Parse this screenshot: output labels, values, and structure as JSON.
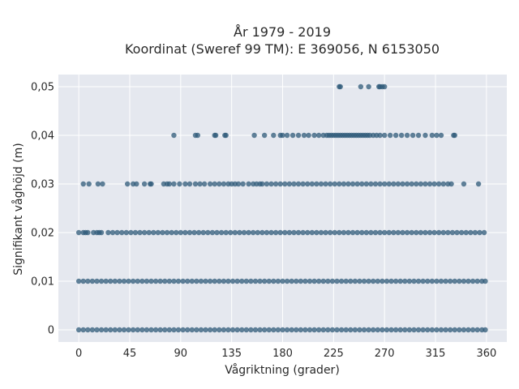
{
  "chart_data": {
    "type": "scatter",
    "title": "År 1979 - 2019",
    "subtitle": "Koordinat (Sweref 99 TM): E 369056, N 6153050",
    "xlabel": "Vågriktning (grader)",
    "ylabel": "Signifikant våghöjd (m)",
    "xlim": [
      -18,
      378
    ],
    "ylim": [
      -0.0025,
      0.0525
    ],
    "x_ticks": [
      0,
      45,
      90,
      135,
      180,
      225,
      270,
      315,
      360
    ],
    "x_tick_labels": [
      "0",
      "45",
      "90",
      "135",
      "180",
      "225",
      "270",
      "315",
      "360"
    ],
    "y_ticks": [
      0,
      0.01,
      0.02,
      0.03,
      0.04,
      0.05
    ],
    "y_tick_labels": [
      "0",
      "0,01",
      "0,02",
      "0,03",
      "0,04",
      "0,05"
    ],
    "grid": true,
    "legend": "none",
    "marker_color": "#2e5a78",
    "plot_background": "#e5e8ef",
    "series": [
      {
        "level_points": [
          {
            "y": 0.05,
            "x": [
              230,
              231,
              249,
              256,
              265,
              266,
              268,
              270
            ]
          },
          {
            "y": 0.04,
            "x": [
              84,
              103,
              105,
              120,
              121,
              129,
              130,
              155,
              164,
              172,
              178,
              180,
              184,
              189,
              194,
              199,
              203,
              208,
              212,
              216,
              219,
              221,
              223,
              225,
              227,
              229,
              231,
              233,
              235,
              237,
              239,
              241,
              243,
              245,
              247,
              249,
              251,
              253,
              255,
              257,
              260,
              263,
              266,
              270,
              275,
              280,
              285,
              290,
              295,
              300,
              306,
              312,
              316,
              320,
              331,
              332
            ]
          },
          {
            "y": 0.03,
            "x": [
              4,
              9,
              17,
              21,
              43,
              48,
              51,
              58,
              63,
              64,
              75,
              78,
              80,
              84,
              89,
              94,
              98,
              103,
              107,
              111,
              116,
              120,
              124,
              128,
              132,
              135,
              138,
              141,
              145,
              150,
              154,
              157,
              160,
              162,
              166,
              170,
              174,
              178,
              182,
              186,
              190,
              194,
              198,
              202,
              206,
              210,
              214,
              218,
              222,
              226,
              230,
              234,
              238,
              242,
              246,
              250,
              254,
              258,
              262,
              266,
              270,
              274,
              278,
              282,
              286,
              290,
              294,
              298,
              302,
              306,
              310,
              314,
              318,
              322,
              326,
              329,
              340,
              353
            ]
          },
          {
            "y": 0.02,
            "x": [
              0,
              4,
              6,
              8,
              13,
              16,
              18,
              20,
              26,
              30,
              34,
              38,
              42,
              46,
              50,
              54,
              58,
              62,
              66,
              70,
              74,
              78,
              82,
              86,
              90,
              94,
              98,
              102,
              106,
              110,
              114,
              118,
              122,
              126,
              130,
              134,
              138,
              142,
              146,
              150,
              154,
              158,
              162,
              166,
              170,
              174,
              178,
              182,
              186,
              190,
              194,
              198,
              202,
              206,
              210,
              214,
              218,
              222,
              226,
              230,
              234,
              238,
              242,
              246,
              250,
              254,
              258,
              262,
              266,
              270,
              274,
              278,
              282,
              286,
              290,
              294,
              298,
              302,
              306,
              310,
              314,
              318,
              322,
              326,
              330,
              334,
              338,
              342,
              346,
              350,
              354,
              358
            ]
          },
          {
            "y": 0.01,
            "x": [
              0,
              4,
              8,
              12,
              16,
              20,
              24,
              28,
              32,
              36,
              40,
              44,
              48,
              52,
              56,
              60,
              64,
              68,
              72,
              76,
              80,
              84,
              88,
              92,
              96,
              100,
              104,
              108,
              112,
              116,
              120,
              124,
              128,
              132,
              136,
              140,
              144,
              148,
              152,
              156,
              160,
              164,
              168,
              172,
              176,
              180,
              184,
              188,
              192,
              196,
              200,
              204,
              208,
              212,
              216,
              220,
              224,
              228,
              232,
              236,
              240,
              244,
              248,
              252,
              256,
              260,
              264,
              268,
              272,
              276,
              280,
              284,
              288,
              292,
              296,
              300,
              304,
              308,
              312,
              316,
              320,
              324,
              328,
              332,
              336,
              340,
              344,
              348,
              352,
              356,
              359
            ]
          },
          {
            "y": 0,
            "x": [
              0,
              4,
              8,
              12,
              16,
              20,
              24,
              28,
              32,
              36,
              40,
              44,
              48,
              52,
              56,
              60,
              64,
              68,
              72,
              76,
              80,
              84,
              88,
              92,
              96,
              100,
              104,
              108,
              112,
              116,
              120,
              124,
              128,
              132,
              136,
              140,
              144,
              148,
              152,
              156,
              160,
              164,
              168,
              172,
              176,
              180,
              184,
              188,
              192,
              196,
              200,
              204,
              208,
              212,
              216,
              220,
              224,
              228,
              232,
              236,
              240,
              244,
              248,
              252,
              256,
              260,
              264,
              268,
              272,
              276,
              280,
              284,
              288,
              292,
              296,
              300,
              304,
              308,
              312,
              316,
              320,
              324,
              328,
              332,
              336,
              340,
              344,
              348,
              352,
              356,
              359
            ]
          }
        ]
      }
    ]
  }
}
